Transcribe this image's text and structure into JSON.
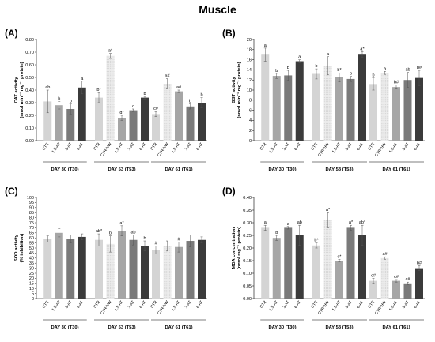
{
  "title": "Muscle",
  "chart_data": [
    {
      "type": "bar",
      "panel": "(A)",
      "title": "",
      "ylabel": "CAT activity (nmol min⁻¹ mg⁻¹ protein)",
      "ylim": [
        0,
        0.8
      ],
      "yticks": [
        "0.00",
        "0.10",
        "0.20",
        "0.30",
        "0.40",
        "0.50",
        "0.60",
        "0.70",
        "0.80"
      ],
      "groups": [
        {
          "label": "DAY 30 (T30)",
          "bars": [
            {
              "category": "CTR",
              "value": 0.31,
              "error": 0.09,
              "annotation": "ab"
            },
            {
              "category": "1.5-AT",
              "value": 0.28,
              "error": 0.03,
              "annotation": "b"
            },
            {
              "category": "3-AT",
              "value": 0.25,
              "error": 0.04,
              "annotation": "b"
            },
            {
              "category": "6-AT",
              "value": 0.42,
              "error": 0.05,
              "annotation": "a"
            }
          ]
        },
        {
          "label": "DAY 53 (T53)",
          "bars": [
            {
              "category": "CTR",
              "value": 0.34,
              "error": 0.04,
              "annotation": "b*"
            },
            {
              "category": "CTR-HW",
              "value": 0.67,
              "error": 0.02,
              "annotation": "a*"
            },
            {
              "category": "1.5-AT",
              "value": 0.18,
              "error": 0.02,
              "annotation": "d*"
            },
            {
              "category": "3-AT",
              "value": 0.24,
              "error": 0.01,
              "annotation": "c"
            },
            {
              "category": "6-AT",
              "value": 0.34,
              "error": 0.01,
              "annotation": "b"
            }
          ]
        },
        {
          "label": "DAY 61 (T61)",
          "bars": [
            {
              "category": "CTR",
              "value": 0.21,
              "error": 0.02,
              "annotation": "c#"
            },
            {
              "category": "CTR-HW",
              "value": 0.45,
              "error": 0.04,
              "annotation": "a#"
            },
            {
              "category": "1.5-AT",
              "value": 0.39,
              "error": 0.01,
              "annotation": "a#"
            },
            {
              "category": "3-AT",
              "value": 0.27,
              "error": 0.02,
              "annotation": "b"
            },
            {
              "category": "6-AT",
              "value": 0.3,
              "error": 0.04,
              "annotation": "b"
            }
          ]
        }
      ]
    },
    {
      "type": "bar",
      "panel": "(B)",
      "title": "",
      "ylabel": "GST activity (nmol min⁻¹ mg⁻¹ protein)",
      "ylim": [
        0,
        20
      ],
      "yticks": [
        "0",
        "2",
        "4",
        "6",
        "8",
        "10",
        "12",
        "14",
        "16",
        "18",
        "20"
      ],
      "groups": [
        {
          "label": "DAY 30 (T30)",
          "bars": [
            {
              "category": "CTR",
              "value": 17.0,
              "error": 1.3,
              "annotation": "a"
            },
            {
              "category": "1.5-AT",
              "value": 12.8,
              "error": 0.5,
              "annotation": "b"
            },
            {
              "category": "3-AT",
              "value": 12.9,
              "error": 1.0,
              "annotation": "b"
            },
            {
              "category": "6-AT",
              "value": 15.7,
              "error": 0.3,
              "annotation": "a"
            }
          ]
        },
        {
          "label": "DAY 53 (T53)",
          "bars": [
            {
              "category": "CTR",
              "value": 13.2,
              "error": 1.0,
              "annotation": "b"
            },
            {
              "category": "CTR-HW",
              "value": 14.8,
              "error": 1.8,
              "annotation": "a"
            },
            {
              "category": "1.5-AT",
              "value": 12.5,
              "error": 0.9,
              "annotation": "b*"
            },
            {
              "category": "3-AT",
              "value": 12.2,
              "error": 0.5,
              "annotation": "b"
            },
            {
              "category": "6-AT",
              "value": 17.0,
              "error": 0.6,
              "annotation": "a*"
            }
          ]
        },
        {
          "label": "DAY 61 (T61)",
          "bars": [
            {
              "category": "CTR",
              "value": 11.2,
              "error": 1.2,
              "annotation": "b"
            },
            {
              "category": "CTR-HW",
              "value": 13.4,
              "error": 0.3,
              "annotation": "a"
            },
            {
              "category": "1.5-AT",
              "value": 10.6,
              "error": 0.4,
              "annotation": "b#"
            },
            {
              "category": "3-AT",
              "value": 12.0,
              "error": 1.5,
              "annotation": "ab"
            },
            {
              "category": "6-AT",
              "value": 12.4,
              "error": 1.5,
              "annotation": "b#"
            }
          ]
        }
      ]
    },
    {
      "type": "bar",
      "panel": "(C)",
      "title": "",
      "ylabel": "SOD activity (% inhibition)",
      "ylim": [
        0,
        100
      ],
      "yticks": [
        "0",
        "5",
        "10",
        "15",
        "20",
        "25",
        "30",
        "35",
        "40",
        "45",
        "50",
        "55",
        "60",
        "65",
        "70",
        "75",
        "80",
        "85",
        "90",
        "95",
        "100"
      ],
      "groups": [
        {
          "label": "DAY 30 (T30)",
          "bars": [
            {
              "category": "CTR",
              "value": 59,
              "error": 3,
              "annotation": ""
            },
            {
              "category": "1.5-AT",
              "value": 65,
              "error": 4,
              "annotation": ""
            },
            {
              "category": "3-AT",
              "value": 59,
              "error": 4,
              "annotation": ""
            },
            {
              "category": "6-AT",
              "value": 61,
              "error": 3,
              "annotation": ""
            }
          ]
        },
        {
          "label": "DAY 53 (T53)",
          "bars": [
            {
              "category": "CTR",
              "value": 58,
              "error": 6,
              "annotation": "ab*"
            },
            {
              "category": "CTR-HW",
              "value": 54,
              "error": 8,
              "annotation": "b"
            },
            {
              "category": "1.5-AT",
              "value": 67,
              "error": 5,
              "annotation": "a*"
            },
            {
              "category": "3-AT",
              "value": 58,
              "error": 5,
              "annotation": "ab"
            },
            {
              "category": "6-AT",
              "value": 52,
              "error": 5,
              "annotation": "b"
            }
          ]
        },
        {
          "label": "DAY 61 (T61)",
          "bars": [
            {
              "category": "CTR",
              "value": 48,
              "error": 4,
              "annotation": "#"
            },
            {
              "category": "CTR-HW",
              "value": 52,
              "error": 5,
              "annotation": ""
            },
            {
              "category": "1.5-AT",
              "value": 51,
              "error": 5,
              "annotation": "#"
            },
            {
              "category": "3-AT",
              "value": 57,
              "error": 6,
              "annotation": ""
            },
            {
              "category": "6-AT",
              "value": 58,
              "error": 3,
              "annotation": ""
            }
          ]
        }
      ]
    },
    {
      "type": "bar",
      "panel": "(D)",
      "title": "",
      "ylabel": "MDA concentration (nmol mg⁻¹ protein)",
      "ylim": [
        0,
        0.4
      ],
      "yticks": [
        "0.00",
        "0.05",
        "0.10",
        "0.15",
        "0.20",
        "0.25",
        "0.30",
        "0.35",
        "0.40"
      ],
      "groups": [
        {
          "label": "DAY 30 (T30)",
          "bars": [
            {
              "category": "CTR",
              "value": 0.28,
              "error": 0.01,
              "annotation": "a"
            },
            {
              "category": "1.5-AT",
              "value": 0.24,
              "error": 0.01,
              "annotation": "b"
            },
            {
              "category": "3-AT",
              "value": 0.28,
              "error": 0.005,
              "annotation": "a"
            },
            {
              "category": "6-AT",
              "value": 0.25,
              "error": 0.04,
              "annotation": "ab"
            }
          ]
        },
        {
          "label": "DAY 53 (T53)",
          "bars": [
            {
              "category": "CTR",
              "value": 0.21,
              "error": 0.01,
              "annotation": "b*"
            },
            {
              "category": "CTR-HW",
              "value": 0.31,
              "error": 0.03,
              "annotation": "a*"
            },
            {
              "category": "1.5-AT",
              "value": 0.15,
              "error": 0.005,
              "annotation": "c*"
            },
            {
              "category": "3-AT",
              "value": 0.28,
              "error": 0.01,
              "annotation": "a*"
            },
            {
              "category": "6-AT",
              "value": 0.25,
              "error": 0.04,
              "annotation": "ab*"
            }
          ]
        },
        {
          "label": "DAY 61 (T61)",
          "bars": [
            {
              "category": "CTR",
              "value": 0.07,
              "error": 0.01,
              "annotation": "c#"
            },
            {
              "category": "CTR-HW",
              "value": 0.16,
              "error": 0.005,
              "annotation": "a#"
            },
            {
              "category": "1.5-AT",
              "value": 0.07,
              "error": 0.005,
              "annotation": "c#"
            },
            {
              "category": "3-AT",
              "value": 0.06,
              "error": 0.005,
              "annotation": "c#"
            },
            {
              "category": "6-AT",
              "value": 0.12,
              "error": 0.01,
              "annotation": "b#"
            }
          ]
        }
      ]
    }
  ],
  "colors": {
    "CTR": "#d4d4d4",
    "CTR-HW": "#ececec",
    "1.5-AT": "#a6a6a6",
    "3-AT": "#7a7a7a",
    "6-AT": "#3b3b3b",
    "error_bar": "#555555"
  }
}
